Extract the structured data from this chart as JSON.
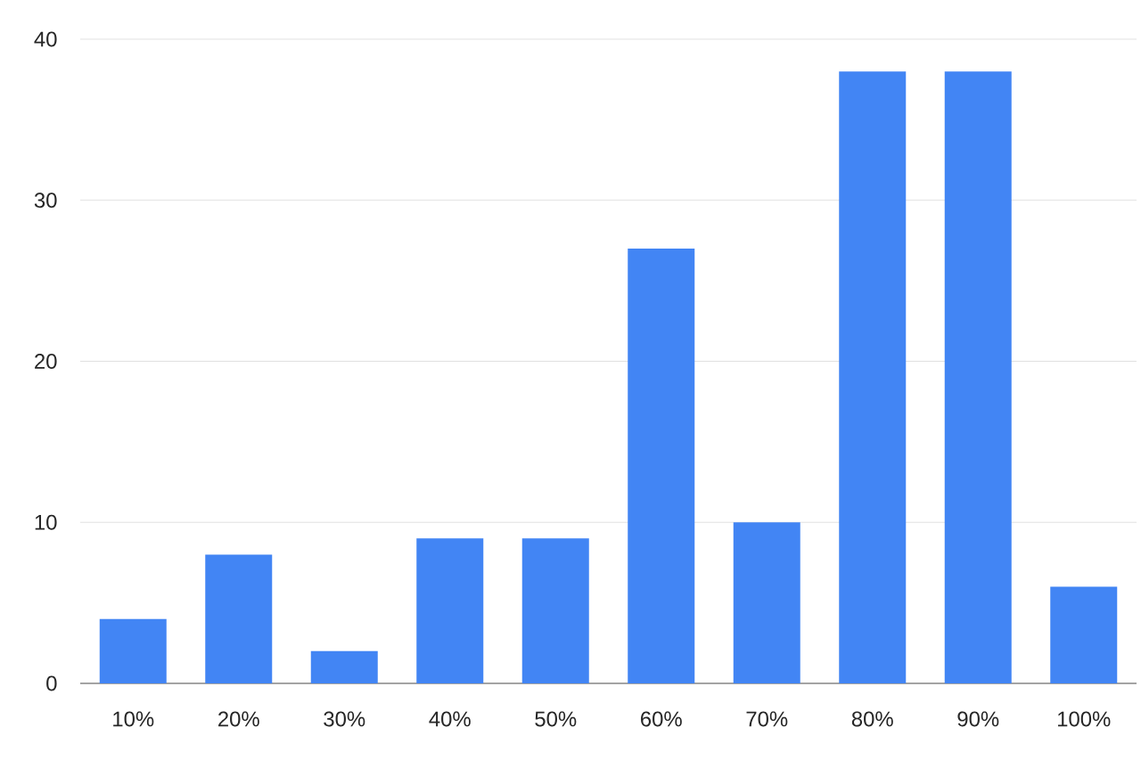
{
  "chart_data": {
    "type": "bar",
    "categories": [
      "10%",
      "20%",
      "30%",
      "40%",
      "50%",
      "60%",
      "70%",
      "80%",
      "90%",
      "100%"
    ],
    "values": [
      4,
      8,
      2,
      9,
      9,
      27,
      10,
      38,
      38,
      6
    ],
    "color": "#4285f4",
    "ylim": [
      0,
      40
    ],
    "yticks": [
      0,
      10,
      20,
      30,
      40
    ],
    "grid": "y"
  }
}
